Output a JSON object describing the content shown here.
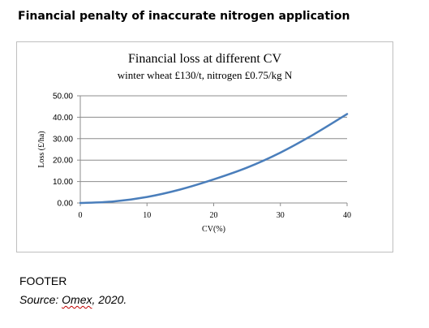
{
  "heading": "Financial penalty of inaccurate nitrogen application",
  "footer": {
    "label": "FOOTER",
    "source_prefix": "Source: ",
    "source_name": "Omex",
    "source_suffix": ", 2020."
  },
  "chart_data": {
    "type": "line",
    "title": "Financial loss at different CV",
    "subtitle": "winter wheat £130/t, nitrogen £0.75/kg N",
    "xlabel": "CV(%)",
    "ylabel": "Loss (£/ha)",
    "xlim": [
      0,
      40
    ],
    "ylim": [
      0,
      50
    ],
    "x_ticks": [
      "0",
      "10",
      "20",
      "30",
      "40"
    ],
    "y_ticks": [
      "0.00",
      "10.00",
      "20.00",
      "30.00",
      "40.00",
      "50.00"
    ],
    "grid": true,
    "legend": "none",
    "line_color": "#4a7ebb",
    "series": [
      {
        "x": [
          0,
          5,
          10,
          15,
          20,
          25,
          30,
          35,
          40
        ],
        "values": [
          0,
          0.7,
          2.8,
          6.3,
          11.0,
          16.5,
          23.5,
          32.0,
          41.5
        ]
      }
    ]
  }
}
